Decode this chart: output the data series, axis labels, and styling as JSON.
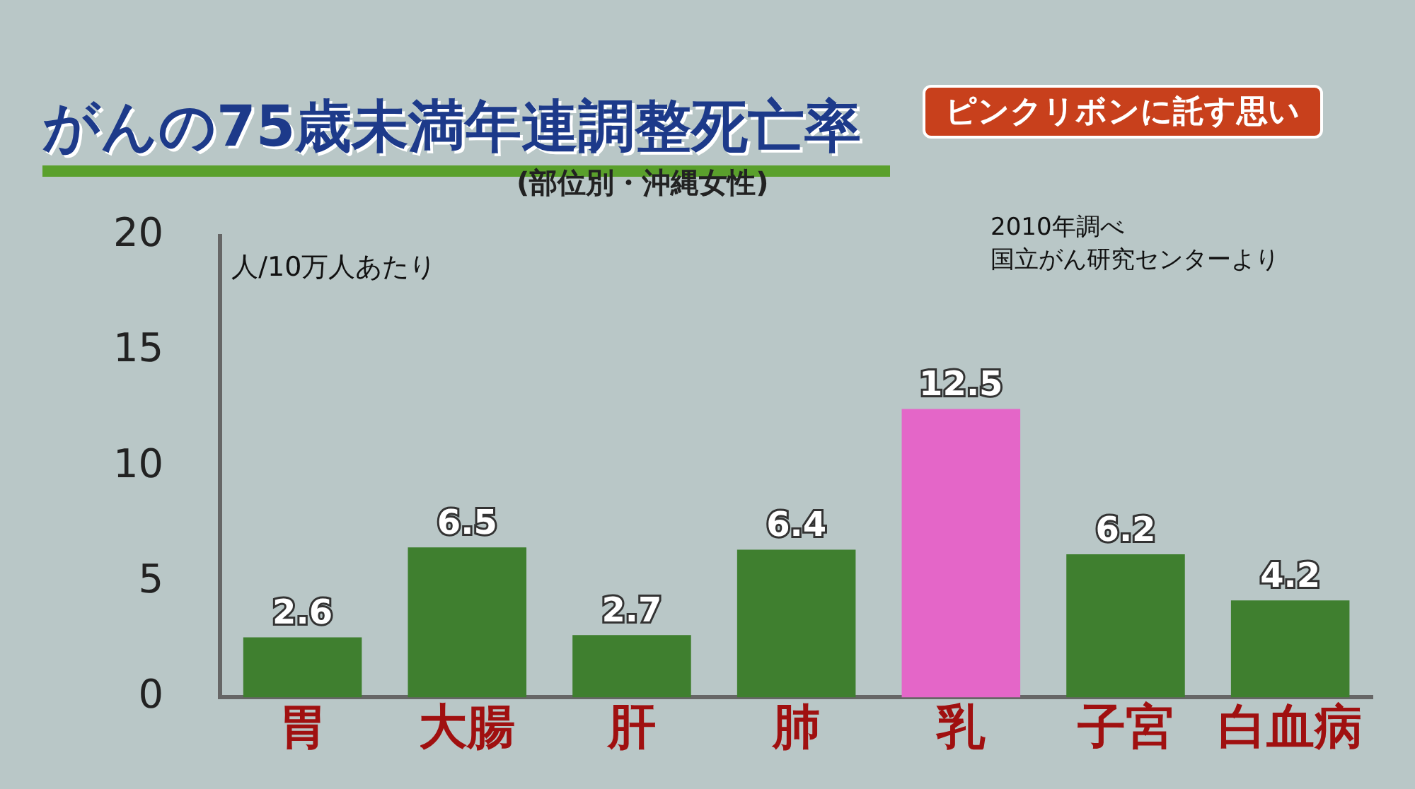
{
  "chart_data": {
    "type": "bar",
    "title": "がんの75歳未満年連調整死亡率",
    "subtitle": "(部位別・沖縄女性)",
    "ylabel": "人/10万人あたり",
    "categories": [
      "胃",
      "大腸",
      "肝",
      "肺",
      "乳",
      "子宮",
      "白血病"
    ],
    "values": [
      2.6,
      6.5,
      2.7,
      6.4,
      12.5,
      6.2,
      4.2
    ],
    "colors": [
      "#3f7f2f",
      "#3f7f2f",
      "#3f7f2f",
      "#3f7f2f",
      "#e466c8",
      "#3f7f2f",
      "#3f7f2f"
    ],
    "ylim": [
      0,
      20
    ],
    "yticks": [
      0,
      5,
      10,
      15,
      20
    ],
    "grid": false,
    "data_labels": true,
    "annotations": [
      "ピンクリボンに託す思い",
      "2010年調べ",
      "国立がん研究センターより"
    ]
  }
}
